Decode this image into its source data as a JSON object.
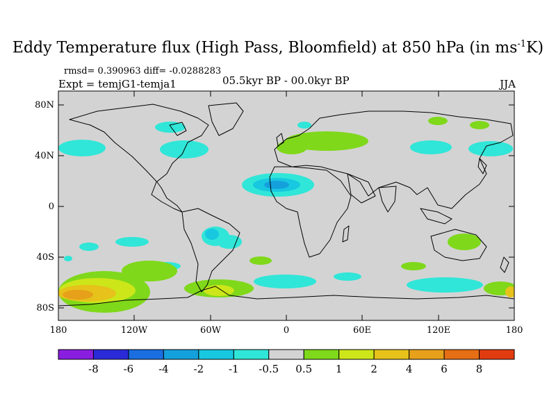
{
  "title": {
    "main": "Eddy Temperature flux (High Pass, Bloomfield) at 850 hPa (in ms",
    "sup": "-1",
    "tail": "K)"
  },
  "stats": "rmsd= 0.390963 diff= -0.0288283",
  "experiment": "Expt = temjG1-temja1",
  "period": "05.5kyr BP - 00.0kyr BP",
  "season": "JJA",
  "lat_labels": [
    "80N",
    "40N",
    "0",
    "40S",
    "80S"
  ],
  "lon_labels": [
    "180",
    "120W",
    "60W",
    "0",
    "60E",
    "120E",
    "180"
  ],
  "colorbar": {
    "labels": [
      "-8",
      "-6",
      "-4",
      "-2",
      "-1",
      "-0.5",
      "0.5",
      "1",
      "2",
      "4",
      "6",
      "8"
    ],
    "colors": [
      "#8a1ee0",
      "#2a2ad8",
      "#1a6ee0",
      "#14a0dc",
      "#17c8e0",
      "#30e6d8",
      "#d3d3d3",
      "#7fd81a",
      "#cce61a",
      "#e6c21a",
      "#e6a01a",
      "#e66e14",
      "#e03c10"
    ]
  },
  "map": {
    "land_color": "#d3d3d3",
    "coast_color": "#000000"
  }
}
